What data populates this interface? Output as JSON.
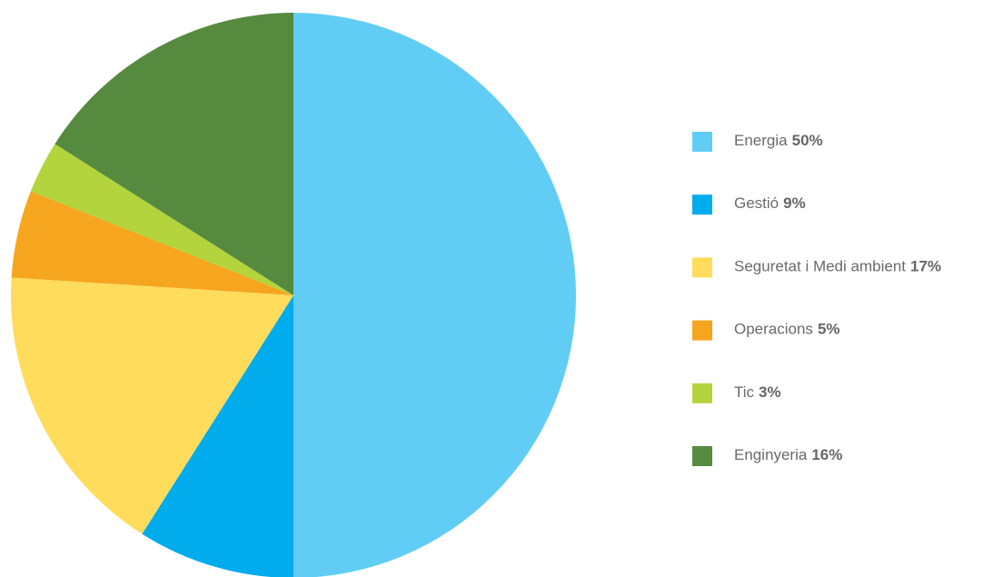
{
  "chart_data": {
    "type": "pie",
    "categories": [
      "Energia",
      "Gestió",
      "Seguretat i Medi ambient",
      "Operacions",
      "Tic",
      "Enginyeria"
    ],
    "values": [
      50,
      9,
      17,
      5,
      3,
      16
    ],
    "value_labels": [
      "50%",
      "9%",
      "17%",
      "5%",
      "3%",
      "16%"
    ],
    "colors": [
      "#61cdf5",
      "#00acec",
      "#ffdc5c",
      "#f6a51f",
      "#b3d43c",
      "#568b3f"
    ]
  }
}
